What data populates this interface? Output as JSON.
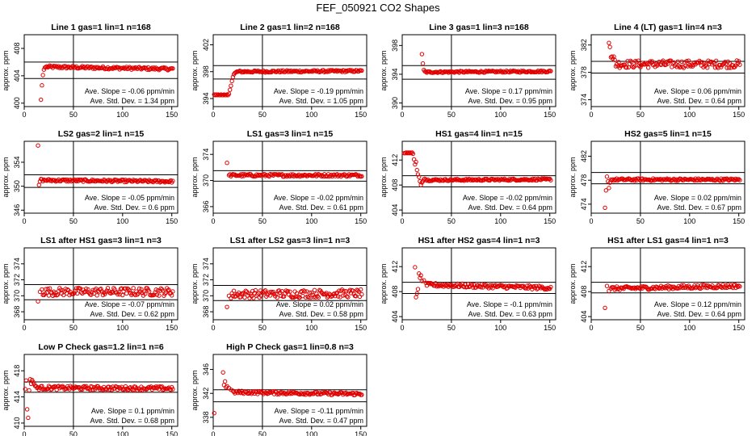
{
  "figure": {
    "title": "FEF_050921  CO2 Shapes",
    "point_color": "#e00000",
    "line_color": "#000000"
  },
  "chart_data": [
    {
      "type": "scatter",
      "title": "Line 1 gas=1 lin=1 n=168",
      "ylabel": "approx. ppm",
      "xlim": [
        0,
        156
      ],
      "ylim": [
        399.5,
        410
      ],
      "x_ticks": [
        0,
        50,
        100,
        150
      ],
      "y_ticks": [
        400,
        404,
        408
      ],
      "hlines": [
        403.6,
        406.0
      ],
      "vline": 50,
      "annotations": [
        "Ave. Slope =  -0.06  ppm/min",
        "Ave. Std. Dev. =  1.34  ppm"
      ],
      "shape": {
        "pre": [
          [
            17,
            400.5
          ],
          [
            18,
            402.6
          ],
          [
            19,
            404.1
          ],
          [
            20,
            404.9
          ],
          [
            21,
            405.2
          ],
          [
            22,
            405.3
          ]
        ],
        "start": 23,
        "end": 151,
        "step": 1,
        "base": 405.3,
        "end_val": 405.0,
        "noise": 0.2
      }
    },
    {
      "type": "scatter",
      "title": "Line 2 gas=1 lin=2 n=168",
      "ylabel": "approx. ppm",
      "xlim": [
        0,
        156
      ],
      "ylim": [
        392.8,
        403.5
      ],
      "x_ticks": [
        0,
        50,
        100,
        150
      ],
      "y_ticks": [
        394,
        398,
        402
      ],
      "hlines": [
        396.9,
        398.9
      ],
      "vline": 50,
      "annotations": [
        "Ave. Slope =  -0.19  ppm/min",
        "Ave. Std. Dev. =  1.05  ppm"
      ],
      "shape": {
        "pre": [
          [
            1,
            394.6
          ],
          [
            2,
            394.5
          ],
          [
            3,
            394.6
          ],
          [
            4,
            394.5
          ],
          [
            5,
            394.6
          ],
          [
            6,
            394.5
          ],
          [
            7,
            394.5
          ],
          [
            8,
            394.6
          ],
          [
            9,
            394.5
          ],
          [
            10,
            394.5
          ],
          [
            11,
            394.6
          ],
          [
            12,
            394.5
          ],
          [
            13,
            394.5
          ],
          [
            14,
            394.6
          ],
          [
            15,
            394.5
          ],
          [
            16,
            394.7
          ],
          [
            17,
            395.3
          ],
          [
            18,
            395.9
          ],
          [
            19,
            396.6
          ],
          [
            20,
            397.2
          ],
          [
            21,
            397.6
          ],
          [
            22,
            397.8
          ],
          [
            23,
            397.9
          ],
          [
            24,
            398.0
          ]
        ],
        "start": 25,
        "end": 151,
        "step": 1,
        "base": 398.0,
        "end_val": 398.1,
        "noise": 0.15
      }
    },
    {
      "type": "scatter",
      "title": "Line 3 gas=1 lin=3 n=168",
      "ylabel": "approx. ppm",
      "xlim": [
        0,
        156
      ],
      "ylim": [
        389.5,
        399.5
      ],
      "x_ticks": [
        0,
        50,
        100,
        150
      ],
      "y_ticks": [
        390,
        394,
        398
      ],
      "hlines": [
        393.3,
        395.2
      ],
      "vline": 50,
      "annotations": [
        "Ave. Slope =  0.17  ppm/min",
        "Ave. Std. Dev. =  0.95  ppm"
      ],
      "shape": {
        "pre": [
          [
            20,
            396.8
          ],
          [
            21,
            395.5
          ],
          [
            22,
            394.6
          ],
          [
            23,
            394.4
          ]
        ],
        "start": 24,
        "end": 151,
        "step": 1,
        "base": 394.3,
        "end_val": 394.4,
        "noise": 0.12
      }
    },
    {
      "type": "scatter",
      "title": "Line 4 (LT) gas=1 lin=4 n=3",
      "ylabel": "approx. ppm",
      "xlim": [
        0,
        156
      ],
      "ylim": [
        373,
        383.5
      ],
      "x_ticks": [
        0,
        50,
        100,
        150
      ],
      "y_ticks": [
        374,
        378,
        382
      ],
      "hlines": [
        377.9,
        379.6
      ],
      "vline": 50,
      "annotations": [
        "Ave. Slope =  0.06  ppm/min",
        "Ave. Std. Dev. =  0.64  ppm"
      ],
      "shape": {
        "pre": [
          [
            18,
            382.3
          ],
          [
            19,
            381.7
          ],
          [
            20,
            380.2
          ],
          [
            21,
            380.3
          ],
          [
            22,
            380.0
          ],
          [
            23,
            380.3
          ],
          [
            24,
            379.8
          ]
        ],
        "start": 25,
        "end": 151,
        "step": 1,
        "base": 379.2,
        "end_val": 379.2,
        "noise": 0.55
      }
    },
    {
      "type": "scatter",
      "title": "LS2 gas=2 lin=1 n=15",
      "ylabel": "approx. ppm",
      "xlim": [
        0,
        156
      ],
      "ylim": [
        345.5,
        357.5
      ],
      "x_ticks": [
        0,
        50,
        100,
        150
      ],
      "y_ticks": [
        346,
        350,
        354
      ],
      "hlines": [
        349.8,
        351.9
      ],
      "vline": 50,
      "annotations": [
        "Ave. Slope =  -0.05  ppm/min",
        "Ave. Std. Dev. =  0.6  ppm"
      ],
      "shape": {
        "pre": [
          [
            14,
            356.8
          ],
          [
            15,
            350.2
          ],
          [
            16,
            350.8
          ],
          [
            17,
            351.2
          ]
        ],
        "start": 18,
        "end": 151,
        "step": 1,
        "base": 351.0,
        "end_val": 350.8,
        "noise": 0.2
      }
    },
    {
      "type": "scatter",
      "title": "LS1 gas=3 lin=1 n=15",
      "ylabel": "approx. ppm",
      "xlim": [
        0,
        156
      ],
      "ylim": [
        365,
        376
      ],
      "x_ticks": [
        0,
        50,
        100,
        150
      ],
      "y_ticks": [
        366,
        370,
        374
      ],
      "hlines": [
        369.9,
        371.5
      ],
      "vline": 50,
      "annotations": [
        "Ave. Slope =  -0.02  ppm/min",
        "Ave. Std. Dev. =  0.61  ppm"
      ],
      "shape": {
        "pre": [
          [
            14,
            372.7
          ],
          [
            16,
            370.8
          ]
        ],
        "start": 17,
        "end": 151,
        "step": 1,
        "base": 370.8,
        "end_val": 370.8,
        "noise": 0.2
      }
    },
    {
      "type": "scatter",
      "title": "HS1 gas=4 lin=1 n=15",
      "ylabel": "approx. ppm",
      "xlim": [
        0,
        156
      ],
      "ylim": [
        403.5,
        415
      ],
      "x_ticks": [
        0,
        50,
        100,
        150
      ],
      "y_ticks": [
        404,
        408,
        412
      ],
      "hlines": [
        407.7,
        409.5
      ],
      "vline": 50,
      "annotations": [
        "Ave. Slope =  -0.02  ppm/min",
        "Ave. Std. Dev. =  0.64  ppm"
      ],
      "shape": {
        "pre": [
          [
            2,
            413.1
          ],
          [
            3,
            413.1
          ],
          [
            4,
            413.2
          ],
          [
            5,
            413.1
          ],
          [
            6,
            413.2
          ],
          [
            7,
            413.1
          ],
          [
            8,
            413.2
          ],
          [
            9,
            413.1
          ],
          [
            10,
            413.2
          ],
          [
            11,
            413.0
          ],
          [
            12,
            412.1
          ],
          [
            13,
            411.3
          ],
          [
            14,
            411.7
          ],
          [
            15,
            410.4
          ],
          [
            16,
            409.7
          ],
          [
            17,
            409.3
          ],
          [
            18,
            408.6
          ],
          [
            19,
            408.0
          ],
          [
            20,
            408.4
          ],
          [
            21,
            408.6
          ],
          [
            22,
            408.9
          ],
          [
            23,
            409.0
          ]
        ],
        "start": 24,
        "end": 151,
        "step": 1,
        "base": 408.8,
        "end_val": 408.9,
        "noise": 0.15
      }
    },
    {
      "type": "scatter",
      "title": "HS2 gas=5 lin=1 n=15",
      "ylabel": "approx. ppm",
      "xlim": [
        0,
        156
      ],
      "ylim": [
        472.5,
        484.5
      ],
      "x_ticks": [
        0,
        50,
        100,
        150
      ],
      "y_ticks": [
        474,
        478,
        482
      ],
      "hlines": [
        477.4,
        479.3
      ],
      "vline": 50,
      "annotations": [
        "Ave. Slope =  0.02  ppm/min",
        "Ave. Std. Dev. =  0.67  ppm"
      ],
      "shape": {
        "pre": [
          [
            14,
            473.4
          ],
          [
            15,
            476.3
          ],
          [
            16,
            478.6
          ],
          [
            17,
            477.8
          ],
          [
            18,
            476.7
          ],
          [
            19,
            477.6
          ]
        ],
        "start": 20,
        "end": 151,
        "step": 1,
        "base": 478.1,
        "end_val": 478.1,
        "noise": 0.2
      }
    },
    {
      "type": "scatter",
      "title": "LS1 after HS1 gas=3 lin=1 n=3",
      "ylabel": "approx. ppm",
      "xlim": [
        0,
        156
      ],
      "ylim": [
        367,
        376
      ],
      "x_ticks": [
        0,
        50,
        100,
        150
      ],
      "y_ticks": [
        368,
        370,
        372,
        374
      ],
      "hlines": [
        369.5,
        371.4
      ],
      "vline": 50,
      "annotations": [
        "Ave. Slope =  -0.07  ppm/min",
        "Ave. Std. Dev. =  0.62  ppm"
      ],
      "shape": {
        "pre": [
          [
            14,
            369.3
          ],
          [
            16,
            370.5
          ],
          [
            18,
            370.8
          ]
        ],
        "start": 19,
        "end": 151,
        "step": 1,
        "base": 370.5,
        "end_val": 370.5,
        "noise": 0.5
      }
    },
    {
      "type": "scatter",
      "title": "LS1 after LS2 gas=3 lin=1 n=3",
      "ylabel": "approx. ppm",
      "xlim": [
        0,
        156
      ],
      "ylim": [
        367,
        376
      ],
      "x_ticks": [
        0,
        50,
        100,
        150
      ],
      "y_ticks": [
        368,
        370,
        372,
        374
      ],
      "hlines": [
        369.4,
        371.3
      ],
      "vline": 50,
      "annotations": [
        "Ave. Slope =  0.02  ppm/min",
        "Ave. Std. Dev. =  0.58  ppm"
      ],
      "shape": {
        "pre": [
          [
            14,
            368.6
          ],
          [
            16,
            370.0
          ],
          [
            18,
            369.7
          ]
        ],
        "start": 19,
        "end": 151,
        "step": 1,
        "base": 370.2,
        "end_val": 370.3,
        "noise": 0.5
      }
    },
    {
      "type": "scatter",
      "title": "HS1 after HS2 gas=4 lin=1 n=3",
      "ylabel": "approx. ppm",
      "xlim": [
        0,
        156
      ],
      "ylim": [
        403.5,
        415
      ],
      "x_ticks": [
        0,
        50,
        100,
        150
      ],
      "y_ticks": [
        404,
        408,
        412
      ],
      "hlines": [
        407.7,
        409.5
      ],
      "vline": 50,
      "annotations": [
        "Ave. Slope =  -0.1  ppm/min",
        "Ave. Std. Dev. =  0.63  ppm"
      ],
      "shape": {
        "pre": [
          [
            13,
            411.9
          ],
          [
            14,
            407.1
          ],
          [
            15,
            407.7
          ],
          [
            16,
            408.4
          ],
          [
            17,
            410.9
          ],
          [
            18,
            410.2
          ],
          [
            19,
            410.6
          ],
          [
            20,
            409.7
          ],
          [
            22,
            409.8
          ],
          [
            24,
            409.4
          ]
        ],
        "start": 25,
        "end": 151,
        "step": 1,
        "base": 409.1,
        "end_val": 408.6,
        "noise": 0.3
      }
    },
    {
      "type": "scatter",
      "title": "HS1 after LS1 gas=4 lin=1 n=3",
      "ylabel": "approx. ppm",
      "xlim": [
        0,
        156
      ],
      "ylim": [
        403.5,
        415
      ],
      "x_ticks": [
        0,
        50,
        100,
        150
      ],
      "y_ticks": [
        404,
        408,
        412
      ],
      "hlines": [
        407.8,
        409.5
      ],
      "vline": 50,
      "annotations": [
        "Ave. Slope =  0.12  ppm/min",
        "Ave. Std. Dev. =  0.64  ppm"
      ],
      "shape": {
        "pre": [
          [
            14,
            405.4
          ],
          [
            16,
            408.9
          ],
          [
            18,
            408.1
          ],
          [
            20,
            408.5
          ]
        ],
        "start": 21,
        "end": 151,
        "step": 1,
        "base": 408.5,
        "end_val": 408.9,
        "noise": 0.3
      }
    },
    {
      "type": "scatter",
      "title": "Low P Check gas=1.2 lin=1 n=6",
      "ylabel": "approx. ppm",
      "xlim": [
        0,
        156
      ],
      "ylim": [
        409.5,
        420.5
      ],
      "x_ticks": [
        0,
        50,
        100,
        150
      ],
      "y_ticks": [
        410,
        414,
        418
      ],
      "hlines": [
        414.7,
        416.3
      ],
      "vline": 50,
      "annotations": [
        "Ave. Slope =  0.1  ppm/min",
        "Ave. Std. Dev. =  0.68  ppm"
      ],
      "shape": {
        "pre": [
          [
            1,
            415.2
          ],
          [
            2,
            416.5
          ],
          [
            3,
            412.1
          ],
          [
            4,
            410.8
          ],
          [
            5,
            415.0
          ],
          [
            6,
            416.7
          ],
          [
            7,
            416.0
          ],
          [
            8,
            416.6
          ],
          [
            9,
            416.3
          ],
          [
            10,
            416.0
          ],
          [
            11,
            415.7
          ]
        ],
        "start": 12,
        "end": 151,
        "step": 1,
        "base": 415.4,
        "end_val": 415.3,
        "noise": 0.3
      }
    },
    {
      "type": "scatter",
      "title": "High P Check gas=1 lin=0.8 n=3",
      "ylabel": "approx. ppm",
      "xlim": [
        0,
        156
      ],
      "ylim": [
        336.5,
        348.5
      ],
      "x_ticks": [
        0,
        50,
        100,
        150
      ],
      "y_ticks": [
        338,
        342,
        346
      ],
      "hlines": [
        340.6,
        342.6
      ],
      "vline": 50,
      "annotations": [
        "Ave. Slope =  -0.11  ppm/min",
        "Ave. Std. Dev. =  0.47  ppm"
      ],
      "shape": {
        "pre": [
          [
            1,
            338.7
          ],
          [
            10,
            345.5
          ],
          [
            11,
            343.4
          ],
          [
            12,
            344.0
          ],
          [
            13,
            343.0
          ],
          [
            14,
            343.2
          ],
          [
            16,
            342.9
          ],
          [
            18,
            342.6
          ]
        ],
        "start": 20,
        "end": 151,
        "step": 1,
        "base": 342.2,
        "end_val": 341.9,
        "noise": 0.25
      }
    }
  ]
}
